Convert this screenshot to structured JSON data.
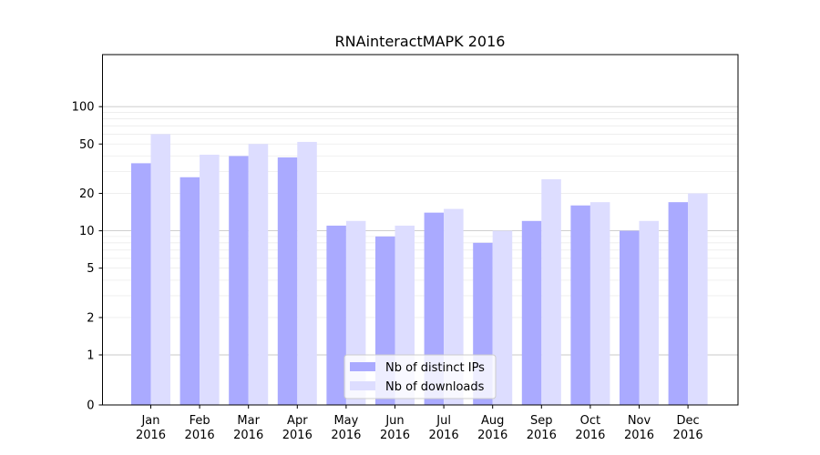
{
  "chart_data": {
    "type": "bar",
    "title": "RNAinteractMAPK 2016",
    "xlabel": "",
    "ylabel": "",
    "y_scale": "symlog",
    "ylim": [
      0,
      120
    ],
    "y_ticks": [
      0,
      1,
      2,
      5,
      10,
      20,
      50,
      100
    ],
    "categories": [
      [
        "Jan",
        "2016"
      ],
      [
        "Feb",
        "2016"
      ],
      [
        "Mar",
        "2016"
      ],
      [
        "Apr",
        "2016"
      ],
      [
        "May",
        "2016"
      ],
      [
        "Jun",
        "2016"
      ],
      [
        "Jul",
        "2016"
      ],
      [
        "Aug",
        "2016"
      ],
      [
        "Sep",
        "2016"
      ],
      [
        "Oct",
        "2016"
      ],
      [
        "Nov",
        "2016"
      ],
      [
        "Dec",
        "2016"
      ]
    ],
    "series": [
      {
        "name": "Nb of distinct IPs",
        "color": "#aaaaff",
        "values": [
          35,
          27,
          40,
          39,
          11,
          9,
          14,
          8,
          12,
          16,
          10,
          17
        ]
      },
      {
        "name": "Nb of downloads",
        "color": "#ddddff",
        "values": [
          60,
          41,
          50,
          52,
          12,
          11,
          15,
          10,
          26,
          17,
          12,
          20
        ]
      }
    ],
    "grid": "horizontal",
    "legend_position": "lower center"
  }
}
